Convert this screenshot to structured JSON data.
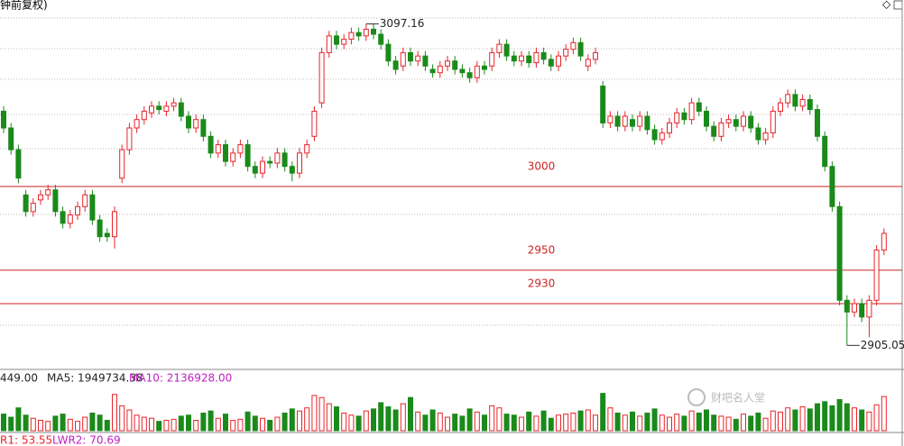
{
  "chart_data": {
    "type": "candlestick",
    "title": "钟前复权)",
    "ylim": [
      2895,
      3105
    ],
    "open": [
      3045,
      3035,
      3022,
      2995,
      2985,
      2992,
      2995,
      2998,
      2985,
      2978,
      2983,
      2988,
      2995,
      2980,
      2972,
      2970,
      3005,
      3022,
      3035,
      3040,
      3044,
      3048,
      3045,
      3048,
      3050,
      3042,
      3035,
      3040,
      3030,
      3020,
      3025,
      3015,
      3020,
      3025,
      3012,
      3008,
      3015,
      3014,
      3020,
      3012,
      3008,
      3020,
      3030,
      3050,
      3080,
      3090,
      3085,
      3088,
      3092,
      3090,
      3094,
      3091,
      3085,
      3075,
      3072,
      3080,
      3075,
      3078,
      3070,
      3068,
      3072,
      3075,
      3070,
      3068,
      3065,
      3072,
      3072,
      3080,
      3085,
      3078,
      3075,
      3078,
      3074,
      3080,
      3076,
      3072,
      3078,
      3082,
      3086,
      3072,
      3076,
      3060,
      3038,
      3042,
      3036,
      3040,
      3036,
      3042,
      3034,
      3028,
      3032,
      3038,
      3044,
      3040,
      3050,
      3045,
      3036,
      3030,
      3038,
      3040,
      3036,
      3042,
      3035,
      3028,
      3032,
      3045,
      3050,
      3055,
      3048,
      3052,
      3046,
      3030,
      3012,
      2988,
      2932,
      2925,
      2930,
      2922,
      2932,
      2962
    ],
    "high": [
      3048,
      3038,
      3025,
      2998,
      2993,
      2998,
      3001,
      3001,
      2988,
      2986,
      2991,
      2998,
      2998,
      2983,
      2975,
      2988,
      3025,
      3038,
      3043,
      3048,
      3051,
      3051,
      3051,
      3053,
      3053,
      3045,
      3043,
      3043,
      3033,
      3028,
      3028,
      3023,
      3028,
      3028,
      3015,
      3018,
      3018,
      3023,
      3023,
      3015,
      3023,
      3028,
      3048,
      3083,
      3093,
      3093,
      3091,
      3095,
      3095,
      3097.16,
      3097,
      3094,
      3088,
      3078,
      3083,
      3083,
      3081,
      3081,
      3073,
      3075,
      3078,
      3078,
      3073,
      3071,
      3075,
      3075,
      3083,
      3088,
      3088,
      3081,
      3081,
      3081,
      3083,
      3083,
      3079,
      3081,
      3085,
      3089,
      3089,
      3079,
      3083,
      3063,
      3045,
      3045,
      3045,
      3043,
      3045,
      3045,
      3037,
      3035,
      3041,
      3047,
      3047,
      3053,
      3053,
      3048,
      3039,
      3041,
      3043,
      3043,
      3045,
      3045,
      3038,
      3035,
      3048,
      3053,
      3058,
      3058,
      3055,
      3055,
      3049,
      3033,
      3015,
      2991,
      2935,
      2933,
      2933,
      2935,
      2965,
      2975
    ],
    "low": [
      3032,
      3019,
      3002,
      2982,
      2982,
      2989,
      2992,
      2982,
      2975,
      2975,
      2980,
      2985,
      2977,
      2967,
      2967,
      2963,
      3002,
      3019,
      3032,
      3037,
      3041,
      3043,
      3042,
      3045,
      3039,
      3032,
      3032,
      3027,
      3017,
      3017,
      3012,
      3012,
      3017,
      3009,
      3005,
      3005,
      3011,
      3011,
      3009,
      3003,
      3005,
      3017,
      3027,
      3047,
      3077,
      3082,
      3082,
      3085,
      3087,
      3087,
      3088,
      3082,
      3072,
      3067,
      3069,
      3072,
      3072,
      3069,
      3065,
      3065,
      3069,
      3067,
      3065,
      3062,
      3062,
      3067,
      3069,
      3077,
      3075,
      3072,
      3072,
      3071,
      3071,
      3073,
      3069,
      3069,
      3075,
      3079,
      3075,
      3069,
      3073,
      3035,
      3035,
      3033,
      3033,
      3033,
      3033,
      3031,
      3025,
      3025,
      3029,
      3035,
      3037,
      3037,
      3042,
      3033,
      3027,
      3027,
      3035,
      3033,
      3033,
      3032,
      3025,
      3025,
      3029,
      3042,
      3047,
      3045,
      3045,
      3043,
      3027,
      3009,
      2985,
      2929,
      2905.05,
      2922,
      2919,
      2910,
      2929,
      2959
    ],
    "close": [
      3035,
      3022,
      3005,
      2985,
      2990,
      2995,
      2998,
      2985,
      2978,
      2983,
      2988,
      2995,
      2980,
      2970,
      2970,
      2985,
      3022,
      3035,
      3040,
      3045,
      3048,
      3046,
      3048,
      3050,
      3042,
      3035,
      3040,
      3030,
      3020,
      3025,
      3015,
      3020,
      3025,
      3012,
      3008,
      3015,
      3014,
      3020,
      3012,
      3008,
      3020,
      3025,
      3045,
      3080,
      3090,
      3085,
      3088,
      3092,
      3090,
      3094,
      3091,
      3085,
      3075,
      3070,
      3080,
      3075,
      3078,
      3072,
      3068,
      3072,
      3075,
      3070,
      3068,
      3065,
      3072,
      3070,
      3080,
      3085,
      3078,
      3075,
      3078,
      3074,
      3080,
      3076,
      3072,
      3078,
      3082,
      3086,
      3078,
      3076,
      3080,
      3038,
      3042,
      3036,
      3042,
      3036,
      3042,
      3034,
      3028,
      3032,
      3038,
      3044,
      3040,
      3050,
      3045,
      3036,
      3030,
      3038,
      3040,
      3036,
      3042,
      3035,
      3028,
      3032,
      3045,
      3050,
      3055,
      3048,
      3052,
      3046,
      3030,
      3012,
      2988,
      2932,
      2925,
      2930,
      2922,
      2932,
      2962,
      2972
    ],
    "up_color": "#e8242a",
    "down_color": "#1a8a1a",
    "levels": [
      3000,
      2950,
      2930
    ],
    "level_color": "#cc2222",
    "volume": [
      1600000,
      1300000,
      2200000,
      1500000,
      1200000,
      1000000,
      900000,
      1400000,
      1600000,
      1100000,
      900000,
      1300000,
      1700000,
      1500000,
      1000000,
      3500000,
      2400000,
      2000000,
      1500000,
      1300000,
      1200000,
      900000,
      1000000,
      1100000,
      1400000,
      1500000,
      1000000,
      1700000,
      1900000,
      1200000,
      1600000,
      1000000,
      1100000,
      1800000,
      1400000,
      1200000,
      1000000,
      1300000,
      1700000,
      2100000,
      1900000,
      2200000,
      3400000,
      3200000,
      2600000,
      2300000,
      1700000,
      1500000,
      1400000,
      1900000,
      2100000,
      2700000,
      2300000,
      2000000,
      2600000,
      3200000,
      1800000,
      1500000,
      2000000,
      1700000,
      1300000,
      1600000,
      1400000,
      2100000,
      1800000,
      1500000,
      2400000,
      2200000,
      1600000,
      1500000,
      1300000,
      1800000,
      1400000,
      1900000,
      1200000,
      1500000,
      1600000,
      1700000,
      1900000,
      2000000,
      1500000,
      3600000,
      2200000,
      1700000,
      1500000,
      1800000,
      1400000,
      1700000,
      2100000,
      1500000,
      1300000,
      1600000,
      1400000,
      1900000,
      1700000,
      2000000,
      1500000,
      1400000,
      1300000,
      1100000,
      1600000,
      1400000,
      1700000,
      1200000,
      1900000,
      1800000,
      2200000,
      2000000,
      2300000,
      2100000,
      2600000,
      2800000,
      2400000,
      3000000,
      2600000,
      2200000,
      2000000,
      1800000,
      2500000,
      3300000
    ],
    "volume_ylim": [
      0,
      4000000
    ],
    "volume_header": [
      "449.00",
      "MA5: 1949734.38",
      "MA10: 2136928.00"
    ],
    "indicator_header": [
      "R1: 53.55",
      "LWR2: 70.69"
    ],
    "watermark": "财吧名人堂"
  }
}
